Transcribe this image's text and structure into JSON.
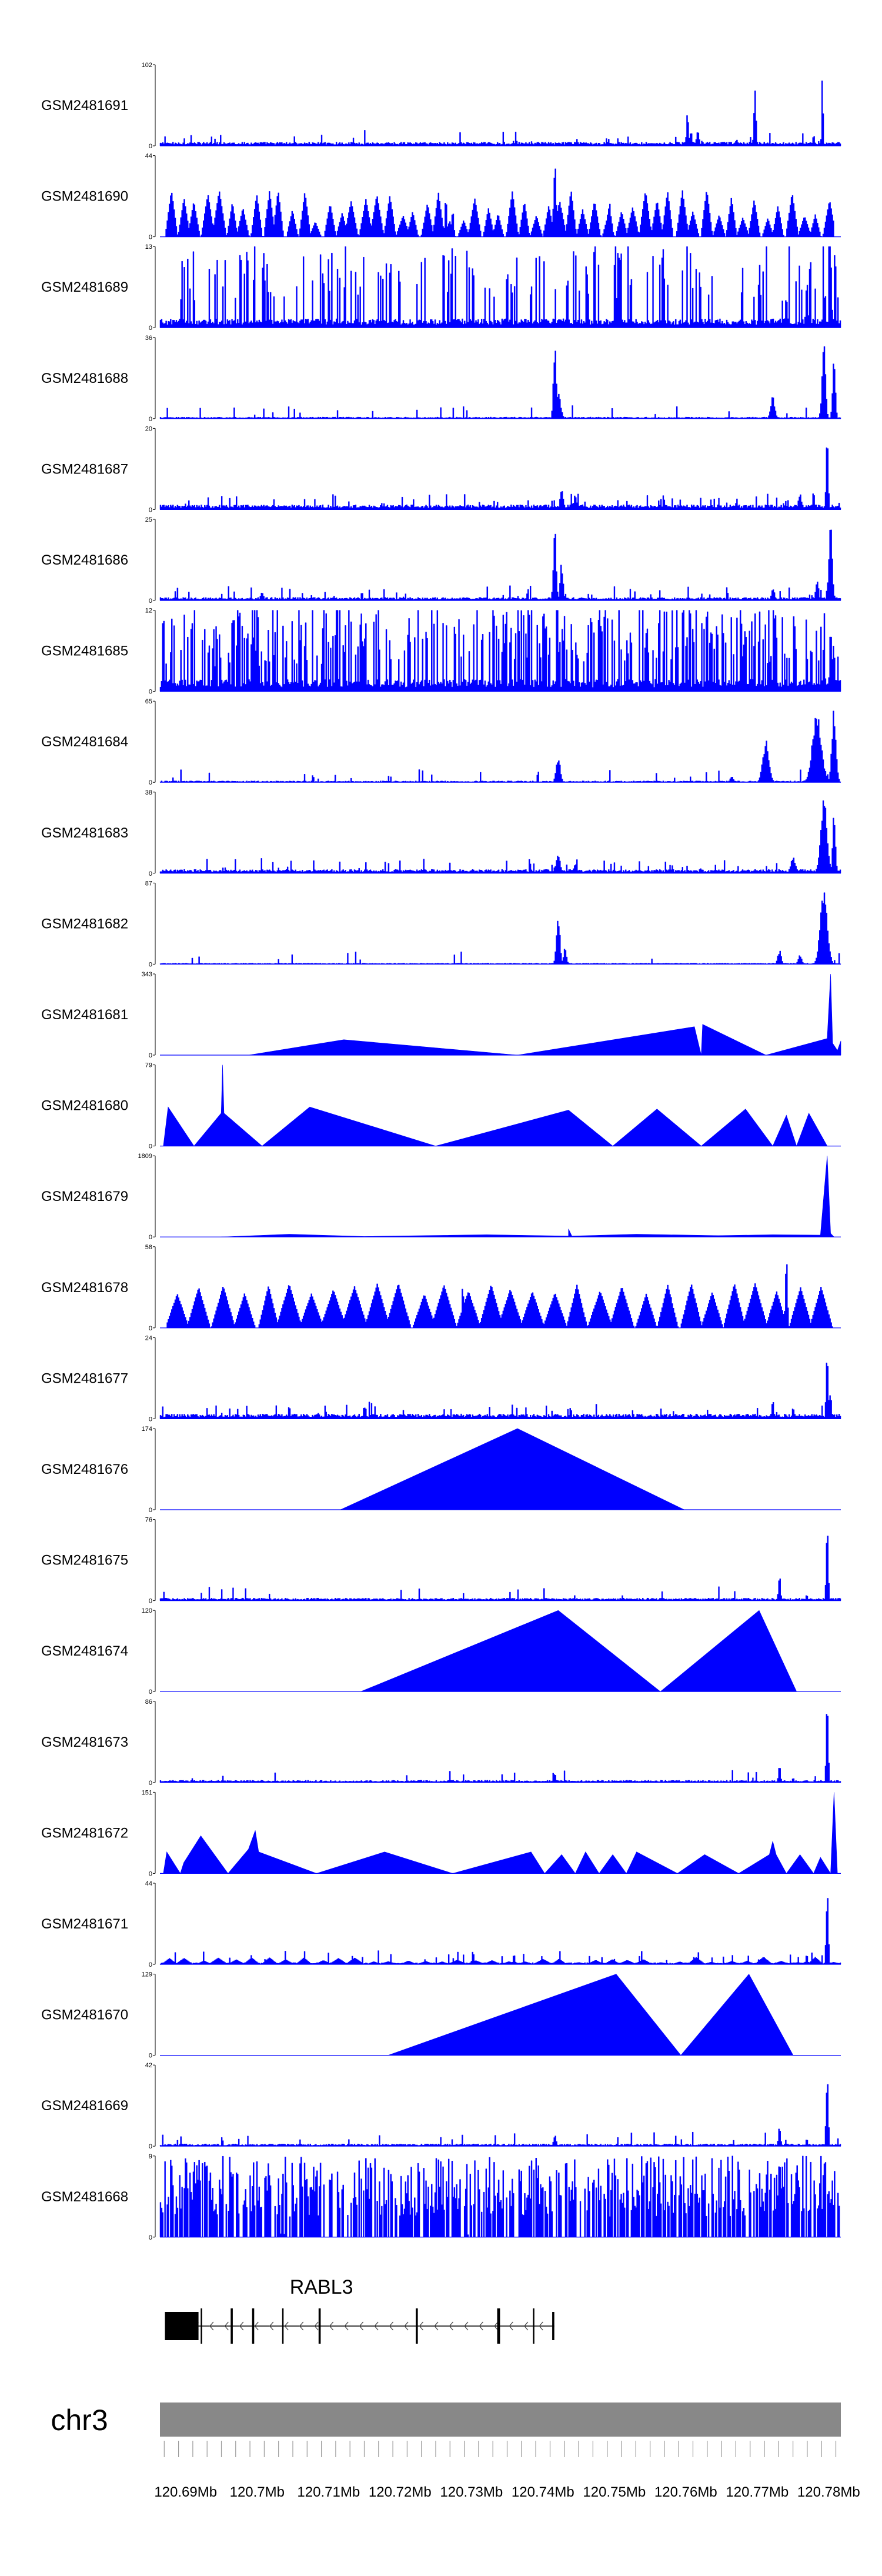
{
  "chromosome": "chr3",
  "x_ticks": [
    "120.69Mb",
    "120.7Mb",
    "120.71Mb",
    "120.72Mb",
    "120.73Mb",
    "120.74Mb",
    "120.75Mb",
    "120.76Mb",
    "120.77Mb",
    "120.78Mb"
  ],
  "gene": {
    "name": "RABL3",
    "exons_mb": [
      [
        120.6871,
        120.6918
      ],
      [
        120.6921,
        120.6923
      ],
      [
        120.6963,
        120.6966
      ],
      [
        120.6993,
        120.6996
      ],
      [
        120.7035,
        120.7037
      ],
      [
        120.7086,
        120.7089
      ],
      [
        120.7222,
        120.7225
      ],
      [
        120.7336,
        120.734
      ],
      [
        120.7386,
        120.7388
      ],
      [
        120.7413,
        120.7416
      ]
    ],
    "color": "#000000"
  },
  "colors": {
    "track_fill": "#0000ff",
    "axis": "#000000",
    "chromosome_band": "#888888"
  },
  "chart_data": {
    "type": "area",
    "x_range_mb": [
      120.6864,
      120.7817
    ],
    "tracks": [
      {
        "name": "GSM2481691",
        "ymax": 102,
        "ymin": 0,
        "baseline": 4,
        "noise": 0.06,
        "ticky": false,
        "extent": [
          0,
          1
        ],
        "peaks": [
          [
            0.775,
            -1,
            45,
            0.003
          ],
          [
            0.78,
            -1,
            20,
            0.003
          ],
          [
            0.79,
            -1,
            20,
            0.004
          ],
          [
            0.847,
            -1,
            8,
            0.004
          ],
          [
            0.874,
            -1,
            75,
            0.003
          ],
          [
            0.973,
            -1,
            100,
            0.002
          ],
          [
            0.96,
            -1,
            15,
            0.003
          ]
        ]
      },
      {
        "name": "GSM2481690",
        "ymax": 44,
        "ymin": 0,
        "baseline": 0,
        "noise": 0,
        "ticky": false,
        "extent": [
          0.006,
          0.99
        ],
        "tri": {
          "n": 55,
          "hmin": 8,
          "hmax": 26
        },
        "peaks": [
          [
            0.58,
            -1,
            44,
            0.004
          ],
          [
            0.66,
            -1,
            20,
            0.006
          ],
          [
            0.59,
            -1,
            15,
            0.005
          ],
          [
            0.42,
            -1,
            22,
            0.003
          ],
          [
            0.43,
            -1,
            15,
            0.003
          ]
        ]
      },
      {
        "name": "GSM2481689",
        "ymax": 13,
        "ymin": 0,
        "baseline": 1.2,
        "noise": 0.22,
        "ticky": true,
        "extent": [
          0,
          1
        ],
        "peaks": [
          [
            0.985,
            -1,
            13,
            0.003
          ],
          [
            0.95,
            -1,
            8,
            0.003
          ],
          [
            0.92,
            -1,
            6,
            0.003
          ],
          [
            0.975,
            -1,
            7,
            0.002
          ]
        ]
      },
      {
        "name": "GSM2481688",
        "ymax": 36,
        "ymin": 0,
        "baseline": 0.6,
        "noise": 0.05,
        "ticky": false,
        "extent": [
          0,
          1
        ],
        "peaks": [
          [
            0.58,
            -1,
            34,
            0.004
          ],
          [
            0.585,
            -1,
            12,
            0.007
          ],
          [
            0.9,
            -1,
            10,
            0.006
          ],
          [
            0.975,
            -1,
            35,
            0.005
          ],
          [
            0.99,
            -1,
            28,
            0.004
          ]
        ]
      },
      {
        "name": "GSM2481687",
        "ymax": 20,
        "ymin": 0,
        "baseline": 1.0,
        "noise": 0.09,
        "ticky": false,
        "extent": [
          0,
          1
        ],
        "peaks": [
          [
            0.98,
            -1,
            20,
            0.003
          ],
          [
            0.59,
            -1,
            6,
            0.004
          ],
          [
            0.61,
            -1,
            4,
            0.004
          ],
          [
            0.94,
            -1,
            4,
            0.005
          ],
          [
            0.96,
            -1,
            5,
            0.003
          ]
        ]
      },
      {
        "name": "GSM2481686",
        "ymax": 25,
        "ymin": 0,
        "baseline": 0.8,
        "noise": 0.08,
        "ticky": false,
        "extent": [
          0,
          1
        ],
        "peaks": [
          [
            0.58,
            -1,
            24,
            0.004
          ],
          [
            0.59,
            -1,
            12,
            0.004
          ],
          [
            0.985,
            -1,
            24,
            0.005
          ],
          [
            0.965,
            -1,
            7,
            0.004
          ],
          [
            0.9,
            -1,
            4,
            0.004
          ],
          [
            0.15,
            -1,
            3,
            0.004
          ]
        ]
      },
      {
        "name": "GSM2481685",
        "ymax": 12,
        "ymin": 0,
        "baseline": 1.5,
        "noise": 0.45,
        "ticky": true,
        "extent": [
          0,
          1
        ],
        "peaks": [
          [
            0.985,
            -1,
            11,
            0.003
          ],
          [
            0.975,
            -1,
            8,
            0.003
          ]
        ]
      },
      {
        "name": "GSM2481684",
        "ymax": 65,
        "ymin": 0,
        "baseline": 1,
        "noise": 0.03,
        "ticky": false,
        "extent": [
          0,
          1
        ],
        "peaks": [
          [
            0.585,
            -1,
            20,
            0.006
          ],
          [
            0.89,
            -1,
            35,
            0.009
          ],
          [
            0.965,
            -1,
            58,
            0.013
          ],
          [
            0.99,
            -1,
            60,
            0.006
          ],
          [
            0.84,
            -1,
            5,
            0.005
          ]
        ]
      },
      {
        "name": "GSM2481683",
        "ymax": 38,
        "ymin": 0,
        "baseline": 1.5,
        "noise": 0.07,
        "ticky": false,
        "extent": [
          0,
          1
        ],
        "peaks": [
          [
            0.975,
            -1,
            36,
            0.009
          ],
          [
            0.99,
            -1,
            30,
            0.004
          ],
          [
            0.585,
            -1,
            9,
            0.006
          ],
          [
            0.61,
            -1,
            5,
            0.004
          ],
          [
            0.93,
            -1,
            8,
            0.007
          ]
        ]
      },
      {
        "name": "GSM2481682",
        "ymax": 87,
        "ymin": 0,
        "baseline": 1,
        "noise": 0.03,
        "ticky": false,
        "extent": [
          0,
          1
        ],
        "peaks": [
          [
            0.585,
            -1,
            55,
            0.005
          ],
          [
            0.595,
            -1,
            20,
            0.004
          ],
          [
            0.975,
            -1,
            80,
            0.01
          ],
          [
            0.91,
            -1,
            15,
            0.005
          ],
          [
            0.94,
            -1,
            10,
            0.005
          ]
        ]
      },
      {
        "name": "GSM2481681",
        "ymax": 343,
        "ymin": 0,
        "baseline": 0,
        "noise": 0,
        "ticky": false,
        "extent": [
          0,
          1
        ],
        "poly": [
          [
            0.13,
            0
          ],
          [
            0.27,
            65
          ],
          [
            0.525,
            0
          ],
          [
            0.785,
            120
          ],
          [
            0.795,
            0
          ],
          [
            0.797,
            130
          ],
          [
            0.89,
            0
          ],
          [
            0.98,
            70
          ],
          [
            0.985,
            343
          ],
          [
            0.988,
            50
          ],
          [
            0.995,
            20
          ],
          [
            1,
            60
          ],
          [
            1,
            0
          ]
        ]
      },
      {
        "name": "GSM2481680",
        "ymax": 79,
        "ymin": 0,
        "baseline": 0,
        "noise": 0,
        "ticky": false,
        "extent": [
          0,
          1
        ],
        "poly": [
          [
            0.005,
            0
          ],
          [
            0.012,
            38
          ],
          [
            0.05,
            0
          ],
          [
            0.09,
            32
          ],
          [
            0.092,
            79
          ],
          [
            0.094,
            32
          ],
          [
            0.15,
            0
          ],
          [
            0.22,
            38
          ],
          [
            0.405,
            0
          ],
          [
            0.6,
            35
          ],
          [
            0.665,
            0
          ],
          [
            0.73,
            36
          ],
          [
            0.795,
            0
          ],
          [
            0.86,
            36
          ],
          [
            0.9,
            0
          ],
          [
            0.92,
            30
          ],
          [
            0.935,
            0
          ],
          [
            0.953,
            32
          ],
          [
            0.98,
            0
          ]
        ]
      },
      {
        "name": "GSM2481679",
        "ymax": 1809,
        "ymin": 0,
        "baseline": 0,
        "noise": 0,
        "ticky": false,
        "extent": [
          0,
          1
        ],
        "poly": [
          [
            0.09,
            0
          ],
          [
            0.19,
            60
          ],
          [
            0.3,
            10
          ],
          [
            0.48,
            50
          ],
          [
            0.6,
            20
          ],
          [
            0.6,
            180
          ],
          [
            0.605,
            20
          ],
          [
            0.7,
            60
          ],
          [
            0.82,
            30
          ],
          [
            0.9,
            50
          ],
          [
            0.97,
            40
          ],
          [
            0.98,
            1809
          ],
          [
            0.985,
            80
          ],
          [
            0.99,
            0
          ]
        ]
      },
      {
        "name": "GSM2481678",
        "ymax": 58,
        "ymin": 0,
        "baseline": 0,
        "noise": 0,
        "ticky": false,
        "extent": [
          0.01,
          0.99
        ],
        "tri": {
          "n": 30,
          "hmin": 24,
          "hmax": 32
        },
        "peaks": [
          [
            0.92,
            -1,
            58,
            0.003
          ],
          [
            0.75,
            -1,
            34,
            0.003
          ],
          [
            0.445,
            -1,
            34,
            0.003
          ]
        ]
      },
      {
        "name": "GSM2481677",
        "ymax": 24,
        "ymin": 0,
        "baseline": 1.2,
        "noise": 0.07,
        "ticky": false,
        "extent": [
          0,
          1
        ],
        "peaks": [
          [
            0.98,
            -1,
            24,
            0.003
          ],
          [
            0.985,
            -1,
            10,
            0.002
          ],
          [
            0.9,
            -1,
            6,
            0.003
          ],
          [
            0.93,
            -1,
            4,
            0.003
          ],
          [
            0.3,
            -1,
            4,
            0.003
          ]
        ]
      },
      {
        "name": "GSM2481676",
        "ymax": 174,
        "ymin": 0,
        "baseline": 0,
        "noise": 0,
        "ticky": false,
        "extent": [
          0,
          1
        ],
        "poly": [
          [
            0.265,
            0
          ],
          [
            0.525,
            174
          ],
          [
            0.77,
            0
          ]
        ]
      },
      {
        "name": "GSM2481675",
        "ymax": 76,
        "ymin": 0,
        "baseline": 2,
        "noise": 0.04,
        "ticky": false,
        "extent": [
          0,
          1
        ],
        "peaks": [
          [
            0.98,
            -1,
            76,
            0.003
          ],
          [
            0.91,
            -1,
            25,
            0.003
          ],
          [
            0.95,
            -1,
            6,
            0.003
          ]
        ]
      },
      {
        "name": "GSM2481674",
        "ymax": 120,
        "ymin": 0,
        "baseline": 0,
        "noise": 0,
        "ticky": false,
        "extent": [
          0,
          1
        ],
        "poly": [
          [
            0.295,
            0
          ],
          [
            0.585,
            120
          ],
          [
            0.735,
            0
          ],
          [
            0.88,
            120
          ],
          [
            0.935,
            0
          ]
        ]
      },
      {
        "name": "GSM2481673",
        "ymax": 86,
        "ymin": 0,
        "baseline": 2,
        "noise": 0.03,
        "ticky": false,
        "extent": [
          0,
          1
        ],
        "peaks": [
          [
            0.98,
            -1,
            86,
            0.003
          ],
          [
            0.91,
            -1,
            18,
            0.003
          ],
          [
            0.58,
            -1,
            12,
            0.003
          ],
          [
            0.93,
            -1,
            6,
            0.003
          ]
        ]
      },
      {
        "name": "GSM2481672",
        "ymax": 151,
        "ymin": 0,
        "baseline": 0,
        "noise": 0,
        "ticky": false,
        "extent": [
          0,
          1
        ],
        "poly": [
          [
            0.005,
            0
          ],
          [
            0.01,
            40
          ],
          [
            0.03,
            0
          ],
          [
            0.035,
            20
          ],
          [
            0.06,
            70
          ],
          [
            0.1,
            0
          ],
          [
            0.13,
            45
          ],
          [
            0.14,
            80
          ],
          [
            0.145,
            40
          ],
          [
            0.23,
            0
          ],
          [
            0.33,
            40
          ],
          [
            0.43,
            0
          ],
          [
            0.545,
            40
          ],
          [
            0.565,
            0
          ],
          [
            0.59,
            35
          ],
          [
            0.61,
            0
          ],
          [
            0.625,
            40
          ],
          [
            0.645,
            0
          ],
          [
            0.665,
            35
          ],
          [
            0.685,
            0
          ],
          [
            0.7,
            40
          ],
          [
            0.76,
            0
          ],
          [
            0.8,
            35
          ],
          [
            0.85,
            0
          ],
          [
            0.895,
            35
          ],
          [
            0.9,
            60
          ],
          [
            0.905,
            35
          ],
          [
            0.92,
            0
          ],
          [
            0.94,
            35
          ],
          [
            0.96,
            0
          ],
          [
            0.97,
            30
          ],
          [
            0.985,
            0
          ],
          [
            0.99,
            151
          ],
          [
            0.995,
            0
          ]
        ]
      },
      {
        "name": "GSM2481671",
        "ymax": 44,
        "ymin": 0,
        "baseline": 0.8,
        "noise": 0.08,
        "ticky": false,
        "extent": [
          0,
          1
        ],
        "tri": {
          "n": 40,
          "hmin": 1,
          "hmax": 4
        },
        "peaks": [
          [
            0.98,
            -1,
            44,
            0.003
          ],
          [
            0.46,
            -1,
            8,
            0.003
          ],
          [
            0.52,
            -1,
            6,
            0.003
          ],
          [
            0.95,
            -1,
            6,
            0.003
          ]
        ]
      },
      {
        "name": "GSM2481670",
        "ymax": 129,
        "ymin": 0,
        "baseline": 0,
        "noise": 0,
        "ticky": false,
        "extent": [
          0,
          1
        ],
        "poly": [
          [
            0.335,
            0
          ],
          [
            0.67,
            129
          ],
          [
            0.765,
            0
          ],
          [
            0.865,
            129
          ],
          [
            0.93,
            0
          ]
        ]
      },
      {
        "name": "GSM2481669",
        "ymax": 42,
        "ymin": 0,
        "baseline": 1.0,
        "noise": 0.05,
        "ticky": false,
        "extent": [
          0,
          1
        ],
        "peaks": [
          [
            0.98,
            -1,
            42,
            0.003
          ],
          [
            0.91,
            -1,
            12,
            0.003
          ],
          [
            0.58,
            -1,
            6,
            0.004
          ],
          [
            0.95,
            -1,
            4,
            0.003
          ]
        ]
      },
      {
        "name": "GSM2481668",
        "ymax": 9,
        "ymin": 0,
        "baseline": 0,
        "noise": 0.7,
        "ticky": true,
        "extent": [
          0,
          1
        ],
        "peaks": [
          [
            0.18,
            -1,
            9,
            0.002
          ],
          [
            0.45,
            -1,
            8,
            0.002
          ],
          [
            0.8,
            -1,
            8,
            0.002
          ]
        ]
      }
    ]
  }
}
